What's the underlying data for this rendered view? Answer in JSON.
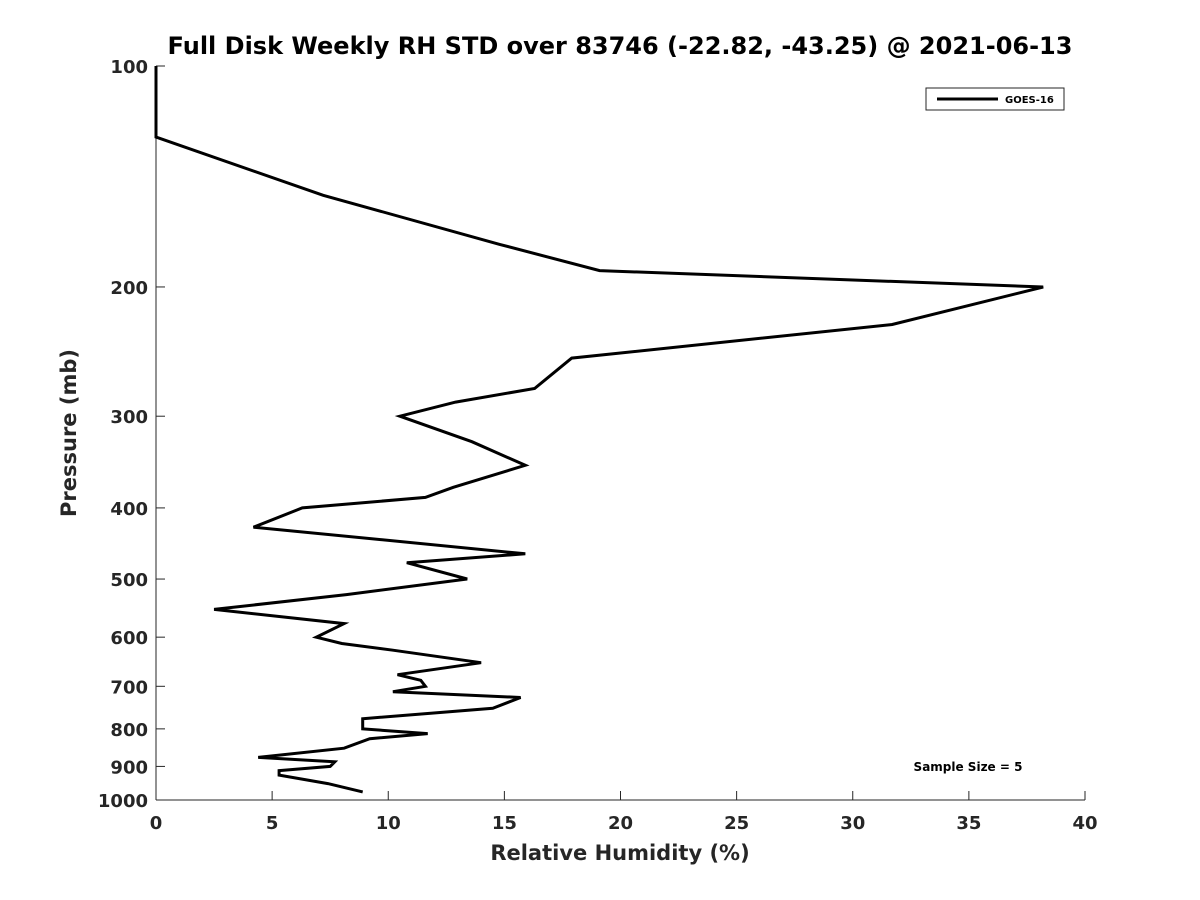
{
  "chart_data": {
    "type": "line",
    "title": "Full Disk Weekly RH STD over 83746 (-22.82, -43.25) @ 2021-06-13",
    "xlabel": "Relative Humidity (%)",
    "ylabel": "Pressure (mb)",
    "xlim": [
      0,
      40
    ],
    "ylim": [
      100,
      1000
    ],
    "y_scale": "log",
    "y_reversed": true,
    "grid": false,
    "legend_position": "top-right",
    "x_ticks": [
      "0",
      "5",
      "10",
      "15",
      "20",
      "25",
      "30",
      "35",
      "40"
    ],
    "y_ticks": [
      "100",
      "200",
      "300",
      "400",
      "500",
      "600",
      "700",
      "800",
      "900",
      "1000"
    ],
    "series": [
      {
        "name": "GOES-16",
        "color": "#000000",
        "points": [
          [
            0.0,
            100
          ],
          [
            0.0,
            125
          ],
          [
            7.2,
            150
          ],
          [
            14.8,
            175
          ],
          [
            19.1,
            190
          ],
          [
            38.2,
            200
          ],
          [
            31.7,
            225
          ],
          [
            17.9,
            250
          ],
          [
            16.3,
            275
          ],
          [
            12.9,
            287
          ],
          [
            10.5,
            300
          ],
          [
            13.6,
            325
          ],
          [
            15.9,
            350
          ],
          [
            12.8,
            375
          ],
          [
            11.6,
            387
          ],
          [
            6.3,
            400
          ],
          [
            4.2,
            425
          ],
          [
            15.9,
            462
          ],
          [
            10.8,
            475
          ],
          [
            13.4,
            500
          ],
          [
            8.2,
            525
          ],
          [
            2.5,
            550
          ],
          [
            8.1,
            575
          ],
          [
            6.9,
            600
          ],
          [
            8.0,
            612
          ],
          [
            10.2,
            625
          ],
          [
            14.0,
            650
          ],
          [
            10.4,
            675
          ],
          [
            11.4,
            687
          ],
          [
            11.6,
            700
          ],
          [
            10.2,
            712
          ],
          [
            15.7,
            725
          ],
          [
            14.5,
            750
          ],
          [
            8.9,
            775
          ],
          [
            8.9,
            800
          ],
          [
            11.7,
            812
          ],
          [
            9.2,
            825
          ],
          [
            8.1,
            850
          ],
          [
            4.4,
            875
          ],
          [
            7.7,
            887
          ],
          [
            7.5,
            900
          ],
          [
            5.3,
            912
          ],
          [
            5.3,
            925
          ],
          [
            7.4,
            950
          ],
          [
            8.9,
            975
          ]
        ]
      }
    ],
    "annotation": "Sample Size = 5"
  }
}
